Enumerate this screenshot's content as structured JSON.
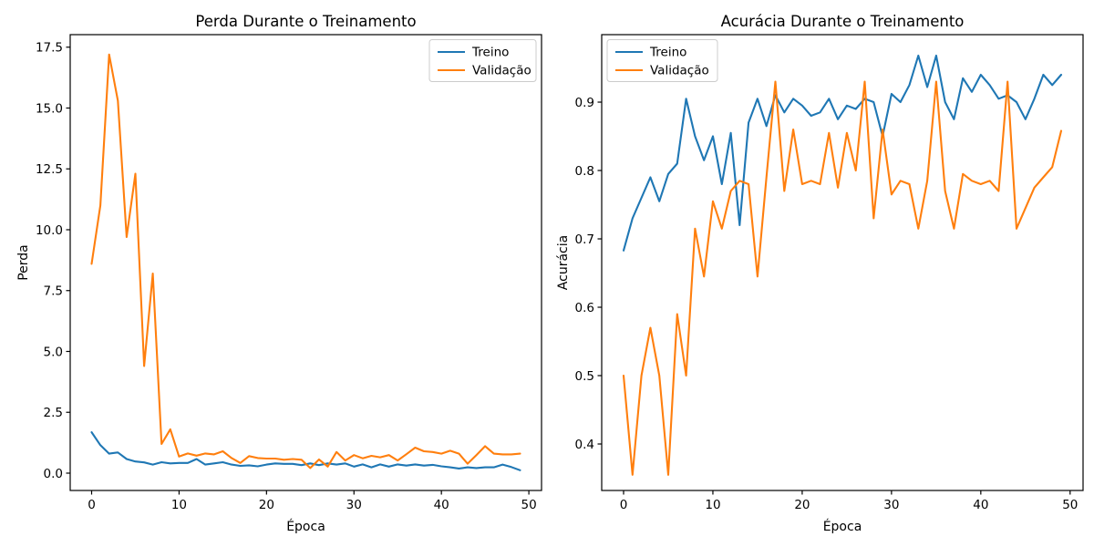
{
  "figure": {
    "background": "#ffffff",
    "description": "Two line charts of model training over 50 epochs"
  },
  "colors": {
    "treino": "#1f77b4",
    "validacao": "#ff7f0e",
    "spine": "#000000",
    "text": "#000000",
    "legend_border": "#cccccc",
    "legend_fill": "#ffffff"
  },
  "chart_data": [
    {
      "id": "loss-plot",
      "type": "line",
      "title": "Perda Durante o Treinamento",
      "xlabel": "Época",
      "ylabel": "Perda",
      "x_start": 0,
      "x_step": 1,
      "xlim": [
        -2.45,
        51.45
      ],
      "ylim": [
        -0.712,
        18.015
      ],
      "xticks": [
        0,
        10,
        20,
        30,
        40,
        50
      ],
      "xtick_labels": [
        "0",
        "10",
        "20",
        "30",
        "40",
        "50"
      ],
      "yticks": [
        0.0,
        2.5,
        5.0,
        7.5,
        10.0,
        12.5,
        15.0,
        17.5
      ],
      "ytick_labels": [
        "0.0",
        "2.5",
        "5.0",
        "7.5",
        "10.0",
        "12.5",
        "15.0",
        "17.5"
      ],
      "grid": false,
      "legend_position": "upper right",
      "series": [
        {
          "name": "Treino",
          "color_key": "treino",
          "values": [
            1.68,
            1.15,
            0.8,
            0.85,
            0.58,
            0.48,
            0.44,
            0.35,
            0.45,
            0.4,
            0.42,
            0.42,
            0.58,
            0.35,
            0.4,
            0.45,
            0.35,
            0.3,
            0.32,
            0.28,
            0.35,
            0.4,
            0.38,
            0.38,
            0.33,
            0.4,
            0.33,
            0.4,
            0.35,
            0.4,
            0.27,
            0.36,
            0.24,
            0.36,
            0.27,
            0.36,
            0.31,
            0.36,
            0.31,
            0.34,
            0.28,
            0.24,
            0.19,
            0.24,
            0.21,
            0.24,
            0.24,
            0.35,
            0.25,
            0.12
          ]
        },
        {
          "name": "Validação",
          "color_key": "validacao",
          "values": [
            8.6,
            11.0,
            17.2,
            15.3,
            9.7,
            12.3,
            4.4,
            8.2,
            1.2,
            1.8,
            0.68,
            0.81,
            0.72,
            0.81,
            0.77,
            0.9,
            0.62,
            0.42,
            0.7,
            0.62,
            0.6,
            0.6,
            0.55,
            0.58,
            0.55,
            0.21,
            0.56,
            0.27,
            0.87,
            0.52,
            0.74,
            0.61,
            0.71,
            0.65,
            0.74,
            0.52,
            0.78,
            1.05,
            0.9,
            0.87,
            0.8,
            0.92,
            0.8,
            0.39,
            0.74,
            1.11,
            0.8,
            0.77,
            0.77,
            0.8
          ]
        }
      ]
    },
    {
      "id": "accuracy-plot",
      "type": "line",
      "title": "Acurácia Durante o Treinamento",
      "xlabel": "Época",
      "ylabel": "Acurácia",
      "x_start": 0,
      "x_step": 1,
      "xlim": [
        -2.45,
        51.45
      ],
      "ylim": [
        0.332,
        0.9987
      ],
      "xticks": [
        0,
        10,
        20,
        30,
        40,
        50
      ],
      "xtick_labels": [
        "0",
        "10",
        "20",
        "30",
        "40",
        "50"
      ],
      "yticks": [
        0.4,
        0.5,
        0.6,
        0.7,
        0.8,
        0.9
      ],
      "ytick_labels": [
        "0.4",
        "0.5",
        "0.6",
        "0.7",
        "0.8",
        "0.9"
      ],
      "grid": false,
      "legend_position": "upper left",
      "series": [
        {
          "name": "Treino",
          "color_key": "treino",
          "values": [
            0.683,
            0.73,
            0.76,
            0.79,
            0.755,
            0.795,
            0.81,
            0.905,
            0.85,
            0.815,
            0.85,
            0.78,
            0.855,
            0.72,
            0.87,
            0.905,
            0.865,
            0.91,
            0.885,
            0.905,
            0.895,
            0.88,
            0.885,
            0.905,
            0.875,
            0.895,
            0.89,
            0.905,
            0.9,
            0.85,
            0.912,
            0.9,
            0.925,
            0.968,
            0.922,
            0.968,
            0.9,
            0.875,
            0.935,
            0.915,
            0.94,
            0.925,
            0.905,
            0.91,
            0.9,
            0.875,
            0.905,
            0.94,
            0.925,
            0.94
          ]
        },
        {
          "name": "Validação",
          "color_key": "validacao",
          "values": [
            0.5,
            0.355,
            0.5,
            0.57,
            0.5,
            0.355,
            0.59,
            0.5,
            0.715,
            0.645,
            0.755,
            0.715,
            0.77,
            0.785,
            0.78,
            0.645,
            0.79,
            0.93,
            0.77,
            0.86,
            0.78,
            0.785,
            0.78,
            0.855,
            0.775,
            0.855,
            0.8,
            0.93,
            0.73,
            0.86,
            0.765,
            0.785,
            0.78,
            0.715,
            0.785,
            0.93,
            0.77,
            0.715,
            0.795,
            0.785,
            0.78,
            0.785,
            0.77,
            0.93,
            0.715,
            0.745,
            0.775,
            0.79,
            0.805,
            0.858
          ]
        }
      ]
    }
  ]
}
